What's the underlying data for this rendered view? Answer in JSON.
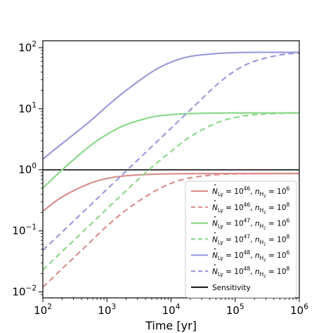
{
  "chart_data": {
    "type": "line",
    "title": "",
    "xlabel": "Time [yr]",
    "ylabel": "",
    "xscale": "log",
    "yscale": "log",
    "xlim": [
      100,
      1000000
    ],
    "ylim": [
      0.008,
      130
    ],
    "grid": false,
    "legend_position": "bottom-right",
    "x_ticks": [
      {
        "value": 100,
        "base": "10",
        "exp": "2"
      },
      {
        "value": 1000,
        "base": "10",
        "exp": "3"
      },
      {
        "value": 10000,
        "base": "10",
        "exp": "4"
      },
      {
        "value": 100000,
        "base": "10",
        "exp": "5"
      },
      {
        "value": 1000000,
        "base": "10",
        "exp": "6"
      }
    ],
    "y_ticks": [
      {
        "value": 0.01,
        "base": "10",
        "exp": "−2"
      },
      {
        "value": 0.1,
        "base": "10",
        "exp": "−1"
      },
      {
        "value": 1,
        "base": "10",
        "exp": "0"
      },
      {
        "value": 10,
        "base": "10",
        "exp": "1"
      },
      {
        "value": 100,
        "base": "10",
        "exp": "2"
      }
    ],
    "x": [
      100,
      200,
      500,
      1000,
      2000,
      5000,
      10000,
      20000,
      50000,
      100000,
      200000,
      500000,
      1000000
    ],
    "series": [
      {
        "color": "#d98f8c",
        "style": "solid",
        "values": [
          0.21,
          0.36,
          0.58,
          0.72,
          0.8,
          0.845,
          0.86,
          0.865,
          0.868,
          0.87,
          0.87,
          0.87,
          0.87
        ],
        "legend": {
          "n": "46",
          "nh": "6"
        }
      },
      {
        "color": "#d98f8c",
        "style": "dashed",
        "values": [
          0.012,
          0.024,
          0.06,
          0.12,
          0.22,
          0.42,
          0.6,
          0.74,
          0.83,
          0.855,
          0.865,
          0.87,
          0.87
        ],
        "legend": {
          "n": "46",
          "nh": "8"
        }
      },
      {
        "color": "#8dd98b",
        "style": "solid",
        "values": [
          0.5,
          1.0,
          2.3,
          3.8,
          5.5,
          7.3,
          8.0,
          8.35,
          8.5,
          8.55,
          8.55,
          8.55,
          8.55
        ],
        "legend": {
          "n": "47",
          "nh": "6"
        }
      },
      {
        "color": "#8dd98b",
        "style": "dashed",
        "values": [
          0.023,
          0.046,
          0.115,
          0.23,
          0.46,
          1.1,
          2.0,
          3.5,
          5.8,
          7.2,
          8.0,
          8.4,
          8.5
        ],
        "legend": {
          "n": "47",
          "nh": "8"
        }
      },
      {
        "color": "#9b9bdb",
        "style": "solid",
        "values": [
          1.5,
          2.7,
          5.8,
          11,
          20,
          40,
          58,
          72,
          80,
          83,
          84,
          84,
          84
        ],
        "legend": {
          "n": "48",
          "nh": "6"
        }
      },
      {
        "color": "#9b9bdb",
        "style": "dashed",
        "values": [
          0.048,
          0.096,
          0.24,
          0.48,
          0.96,
          2.4,
          4.8,
          9.6,
          24,
          42,
          60,
          76,
          82
        ],
        "legend": {
          "n": "48",
          "nh": "8"
        }
      }
    ],
    "sensitivity": {
      "value": 1.0,
      "color": "#000000",
      "label": "Sensitivity"
    },
    "legend_symbols": {
      "n_dot": "N",
      "ly": "Ly",
      "eq": " = 10",
      "sep": ", ",
      "n_h": "n",
      "h2": "H",
      "two": "2"
    }
  }
}
